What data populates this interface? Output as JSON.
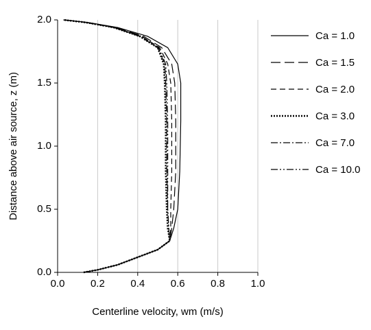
{
  "chart_data": {
    "type": "line",
    "xlabel": "Centerline velocity, wm (m/s)",
    "ylabel": "Distance above air source, z (m)",
    "xlim": [
      0.0,
      1.0
    ],
    "xticks": [
      {
        "value": 0,
        "label": "0.0"
      },
      0.2,
      0.4,
      0.6,
      0.8,
      {
        "value": 1,
        "label": "1.0"
      }
    ],
    "ylim": [
      0.0,
      2.0
    ],
    "yticks": [
      {
        "value": 0,
        "label": "0.0"
      },
      0.5,
      {
        "value": 1,
        "label": "1.0"
      },
      1.5,
      {
        "value": 2,
        "label": "2.0"
      }
    ],
    "grid": "x",
    "legend": "right",
    "series": [
      {
        "name": "Ca = 1.0",
        "color": "#000000",
        "line_style": "solid",
        "x": [
          0.13,
          0.2,
          0.3,
          0.4,
          0.5,
          0.56,
          0.58,
          0.6,
          0.61,
          0.615,
          0.615,
          0.6,
          0.55,
          0.45,
          0.3,
          0.15,
          0.03
        ],
        "values": [
          0.0,
          0.02,
          0.06,
          0.12,
          0.18,
          0.25,
          0.35,
          0.5,
          0.8,
          1.2,
          1.5,
          1.65,
          1.78,
          1.87,
          1.94,
          1.98,
          2.0
        ]
      },
      {
        "name": "Ca = 1.5",
        "color": "#000000",
        "line_style": "long-dash",
        "x": [
          0.13,
          0.2,
          0.3,
          0.4,
          0.5,
          0.56,
          0.57,
          0.58,
          0.59,
          0.59,
          0.585,
          0.57,
          0.52,
          0.43,
          0.29,
          0.15,
          0.03
        ],
        "values": [
          0.0,
          0.02,
          0.06,
          0.12,
          0.18,
          0.25,
          0.35,
          0.5,
          0.8,
          1.2,
          1.5,
          1.65,
          1.78,
          1.87,
          1.94,
          1.98,
          2.0
        ]
      },
      {
        "name": "Ca = 2.0",
        "color": "#000000",
        "line_style": "dash",
        "x": [
          0.13,
          0.2,
          0.3,
          0.4,
          0.5,
          0.56,
          0.565,
          0.565,
          0.57,
          0.57,
          0.565,
          0.55,
          0.51,
          0.42,
          0.28,
          0.14,
          0.03
        ],
        "values": [
          0.0,
          0.02,
          0.06,
          0.12,
          0.18,
          0.25,
          0.35,
          0.5,
          0.8,
          1.2,
          1.5,
          1.65,
          1.78,
          1.87,
          1.94,
          1.98,
          2.0
        ]
      },
      {
        "name": "Ca = 3.0",
        "color": "#000000",
        "line_style": "dot",
        "x": [
          0.13,
          0.2,
          0.3,
          0.4,
          0.5,
          0.56,
          0.55,
          0.545,
          0.54,
          0.54,
          0.535,
          0.53,
          0.5,
          0.41,
          0.28,
          0.14,
          0.03
        ],
        "values": [
          0.0,
          0.02,
          0.06,
          0.12,
          0.18,
          0.25,
          0.35,
          0.5,
          0.8,
          1.2,
          1.5,
          1.65,
          1.78,
          1.87,
          1.94,
          1.98,
          2.0
        ]
      },
      {
        "name": "Ca = 7.0",
        "color": "#000000",
        "line_style": "dash-dot",
        "x": [
          0.13,
          0.2,
          0.3,
          0.4,
          0.5,
          0.56,
          0.555,
          0.55,
          0.545,
          0.545,
          0.54,
          0.535,
          0.5,
          0.41,
          0.28,
          0.14,
          0.03
        ],
        "values": [
          0.0,
          0.02,
          0.06,
          0.12,
          0.18,
          0.25,
          0.35,
          0.5,
          0.8,
          1.2,
          1.5,
          1.65,
          1.78,
          1.87,
          1.94,
          1.98,
          2.0
        ]
      },
      {
        "name": "Ca = 10.0",
        "color": "#000000",
        "line_style": "dash-dot-dot",
        "x": [
          0.13,
          0.2,
          0.3,
          0.4,
          0.5,
          0.56,
          0.555,
          0.55,
          0.55,
          0.55,
          0.545,
          0.54,
          0.505,
          0.42,
          0.28,
          0.14,
          0.03
        ],
        "values": [
          0.0,
          0.02,
          0.06,
          0.12,
          0.18,
          0.25,
          0.35,
          0.5,
          0.8,
          1.2,
          1.5,
          1.65,
          1.78,
          1.87,
          1.94,
          1.98,
          2.0
        ]
      }
    ]
  }
}
